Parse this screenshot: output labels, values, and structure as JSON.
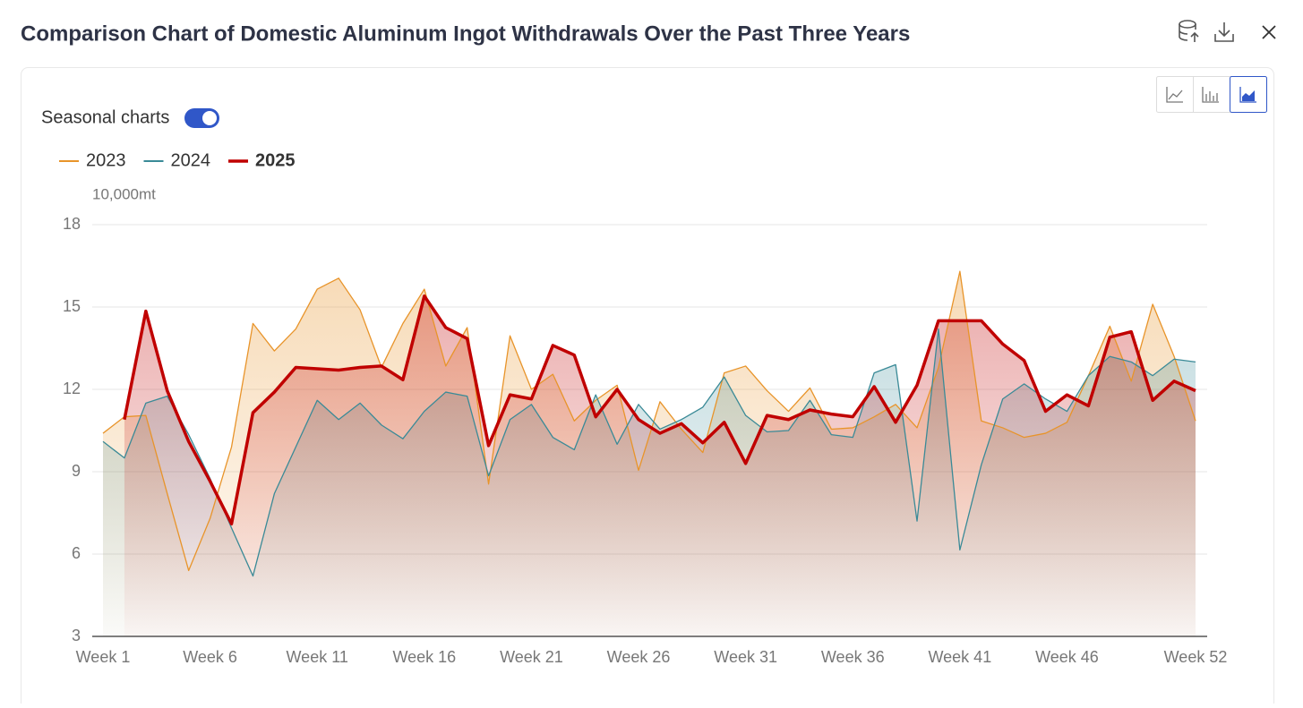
{
  "chart_data": {
    "type": "area",
    "title": "Comparison Chart of Domestic Aluminum Ingot Withdrawals Over the Past Three Years",
    "toggle_label": "Seasonal charts",
    "y_label": "10,000mt",
    "categories": [
      "Week 1",
      null,
      null,
      null,
      null,
      "Week 6",
      null,
      null,
      null,
      null,
      "Week 11",
      null,
      null,
      null,
      null,
      "Week 16",
      null,
      null,
      null,
      null,
      "Week 21",
      null,
      null,
      null,
      null,
      "Week 26",
      null,
      null,
      null,
      null,
      "Week 31",
      null,
      null,
      null,
      null,
      "Week 36",
      null,
      null,
      null,
      null,
      "Week 41",
      null,
      null,
      null,
      null,
      "Week 46",
      null,
      null,
      null,
      null,
      null,
      "Week 52"
    ],
    "ylim": [
      3,
      18
    ],
    "yticks": [
      3,
      6,
      9,
      12,
      15,
      18
    ],
    "grid": true,
    "series": [
      {
        "name": "2023",
        "color": "#e8942a",
        "values": [
          10.4,
          11.0,
          11.05,
          8.2,
          5.4,
          7.3,
          9.9,
          14.4,
          13.4,
          14.2,
          15.65,
          16.05,
          14.9,
          12.8,
          14.4,
          15.65,
          12.85,
          14.25,
          8.55,
          13.95,
          12.0,
          12.55,
          10.85,
          11.6,
          12.15,
          9.05,
          11.55,
          10.55,
          9.7,
          12.6,
          12.85,
          11.95,
          11.2,
          12.05,
          10.55,
          10.6,
          11.0,
          11.45,
          10.6,
          12.8,
          16.3,
          10.85,
          10.6,
          10.25,
          10.4,
          10.8,
          12.5,
          14.3,
          12.3,
          15.1,
          13.2,
          10.85
        ]
      },
      {
        "name": "2024",
        "color": "#3a8a97",
        "values": [
          10.1,
          9.5,
          11.5,
          11.75,
          10.35,
          8.75,
          6.95,
          5.2,
          8.2,
          9.9,
          11.6,
          10.9,
          11.5,
          10.7,
          10.2,
          11.2,
          11.9,
          11.75,
          8.85,
          10.9,
          11.45,
          10.25,
          9.8,
          11.8,
          10.0,
          11.45,
          10.55,
          10.9,
          11.35,
          12.45,
          11.05,
          10.45,
          10.5,
          11.6,
          10.35,
          10.25,
          12.6,
          12.9,
          7.2,
          14.2,
          6.15,
          9.25,
          11.65,
          12.2,
          11.65,
          11.2,
          12.5,
          13.2,
          13.0,
          12.5,
          13.1,
          13.0
        ]
      },
      {
        "name": "2025",
        "color": "#c00000",
        "values": [
          null,
          10.9,
          14.85,
          11.95,
          10.1,
          8.65,
          7.1,
          11.15,
          11.9,
          12.8,
          12.75,
          12.7,
          12.8,
          12.85,
          12.35,
          15.4,
          14.25,
          13.85,
          9.95,
          11.8,
          11.65,
          13.6,
          13.25,
          11.0,
          12.0,
          10.9,
          10.4,
          10.75,
          10.05,
          10.8,
          9.3,
          11.05,
          10.9,
          11.25,
          11.1,
          11.0,
          12.1,
          10.8,
          12.15,
          14.5,
          14.5,
          14.5,
          13.65,
          13.05,
          11.2,
          11.8,
          11.4,
          13.9,
          14.1,
          11.6,
          12.3,
          11.95
        ]
      }
    ]
  }
}
